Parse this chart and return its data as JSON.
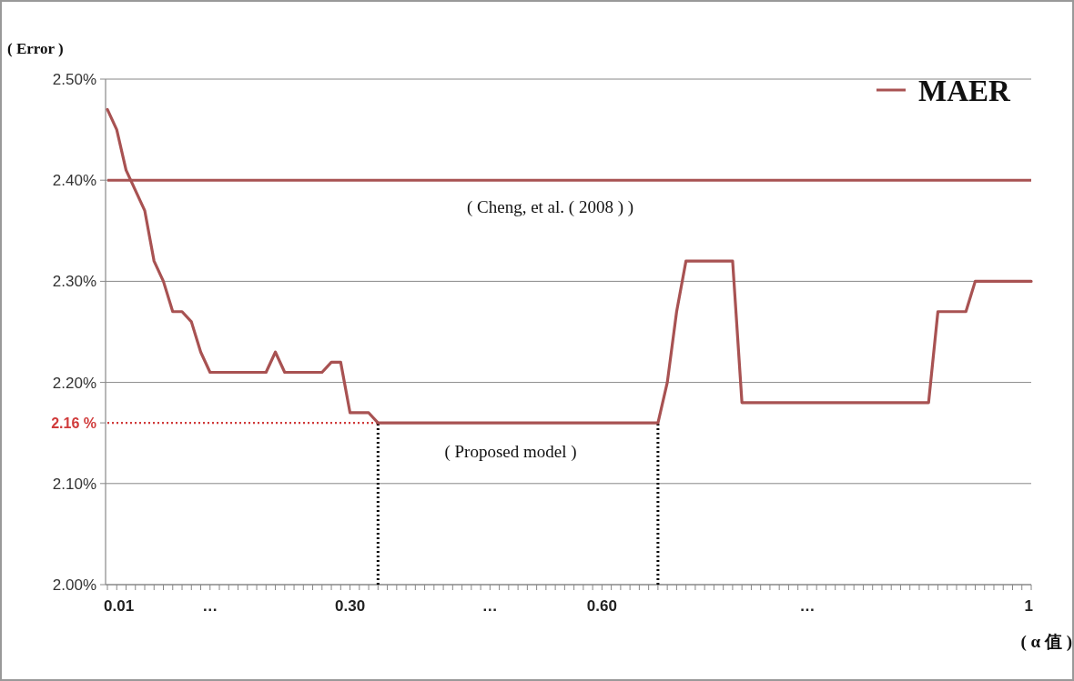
{
  "chart_data": {
    "type": "line",
    "ylabel": "( Error )",
    "xlabel": "( α 值 )",
    "categories": [
      "0.01",
      null,
      null,
      null,
      null,
      null,
      null,
      null,
      null,
      null,
      null,
      "…",
      null,
      null,
      null,
      null,
      null,
      null,
      null,
      null,
      null,
      null,
      null,
      null,
      null,
      null,
      "0.30",
      null,
      null,
      null,
      null,
      null,
      null,
      null,
      null,
      null,
      null,
      null,
      null,
      null,
      null,
      "…",
      null,
      null,
      null,
      null,
      null,
      null,
      null,
      null,
      null,
      null,
      null,
      "0.60",
      null,
      null,
      null,
      null,
      null,
      null,
      null,
      null,
      null,
      null,
      null,
      null,
      null,
      null,
      null,
      null,
      null,
      null,
      null,
      null,
      null,
      "…",
      null,
      null,
      null,
      null,
      null,
      null,
      null,
      null,
      null,
      null,
      null,
      null,
      null,
      null,
      null,
      null,
      null,
      null,
      null,
      null,
      null,
      null,
      null,
      "1"
    ],
    "series": [
      {
        "name": "MAER",
        "color": "#a85252",
        "values": [
          2.47,
          2.45,
          2.41,
          2.39,
          2.37,
          2.32,
          2.3,
          2.27,
          2.27,
          2.26,
          2.23,
          2.21,
          2.21,
          2.21,
          2.21,
          2.21,
          2.21,
          2.21,
          2.23,
          2.21,
          2.21,
          2.21,
          2.21,
          2.21,
          2.22,
          2.22,
          2.17,
          2.17,
          2.17,
          2.16,
          2.16,
          2.16,
          2.16,
          2.16,
          2.16,
          2.16,
          2.16,
          2.16,
          2.16,
          2.16,
          2.16,
          2.16,
          2.16,
          2.16,
          2.16,
          2.16,
          2.16,
          2.16,
          2.16,
          2.16,
          2.16,
          2.16,
          2.16,
          2.16,
          2.16,
          2.16,
          2.16,
          2.16,
          2.16,
          2.16,
          2.2,
          2.27,
          2.32,
          2.32,
          2.32,
          2.32,
          2.32,
          2.32,
          2.18,
          2.18,
          2.18,
          2.18,
          2.18,
          2.18,
          2.18,
          2.18,
          2.18,
          2.18,
          2.18,
          2.18,
          2.18,
          2.18,
          2.18,
          2.18,
          2.18,
          2.18,
          2.18,
          2.18,
          2.18,
          2.27,
          2.27,
          2.27,
          2.27,
          2.3,
          2.3,
          2.3,
          2.3,
          2.3,
          2.3,
          2.3
        ]
      }
    ],
    "ylim": [
      2.0,
      2.5
    ],
    "yticks": [
      {
        "value": 2.0,
        "label": "2.00%"
      },
      {
        "value": 2.1,
        "label": "2.10%"
      },
      {
        "value": 2.2,
        "label": "2.20%"
      },
      {
        "value": 2.3,
        "label": "2.30%"
      },
      {
        "value": 2.4,
        "label": "2.40%"
      },
      {
        "value": 2.5,
        "label": "2.50%"
      }
    ],
    "ref_lines": [
      {
        "axis": "y",
        "value": 2.4,
        "label": "( Cheng, et al. ( 2008 ) )",
        "color": "#a85252",
        "line_style": "solid"
      },
      {
        "axis": "y",
        "value": 2.16,
        "label": "2.16 %",
        "color": "#d03a3a",
        "line_style": "dotted"
      }
    ],
    "annotations": [
      "( Proposed model )"
    ],
    "grid": "y",
    "legend": "top right",
    "marker": "none",
    "line_style": "solid"
  }
}
